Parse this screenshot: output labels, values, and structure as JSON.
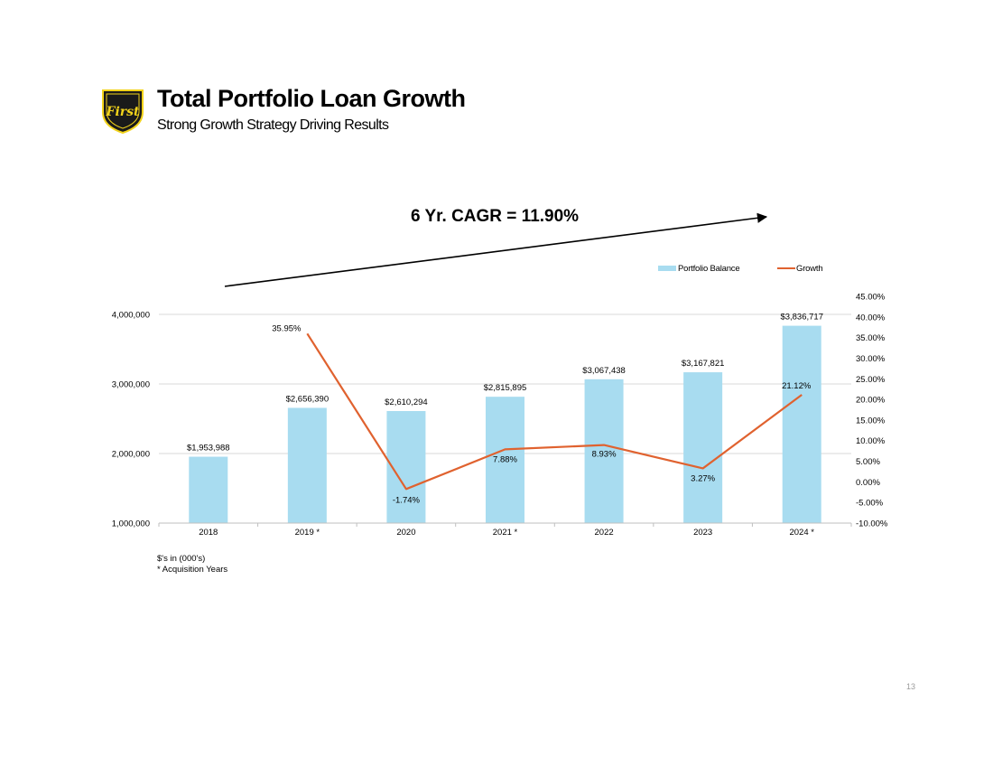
{
  "header": {
    "title": "Total Portfolio Loan Growth",
    "subtitle": "Strong Growth Strategy Driving Results",
    "logo_text": "First"
  },
  "annotation": {
    "cagr_label": "6 Yr. CAGR = 11.90%"
  },
  "footnotes": {
    "units": "$'s in (000's)",
    "acquisition": "* Acquisition Years"
  },
  "page_number": "13",
  "colors": {
    "bar": "#a8dcf0",
    "line": "#e0622f",
    "gridline": "#d9d9d9",
    "logo_bg": "#1a1a1a",
    "logo_accent": "#f2d31b"
  },
  "chart_data": {
    "type": "bar",
    "categories": [
      "2018",
      "2019 *",
      "2020",
      "2021 *",
      "2022",
      "2023",
      "2024 *"
    ],
    "series": [
      {
        "name": "Portfolio Balance",
        "type": "bar",
        "axis": "left",
        "values": [
          1953988,
          2656390,
          2610294,
          2815895,
          3067438,
          3167821,
          3836717
        ],
        "labels": [
          "$1,953,988",
          "$2,656,390",
          "$2,610,294",
          "$2,815,895",
          "$3,067,438",
          "$3,167,821",
          "$3,836,717"
        ]
      },
      {
        "name": "Growth",
        "type": "line",
        "axis": "right",
        "values": [
          null,
          35.95,
          -1.74,
          7.88,
          8.93,
          3.27,
          21.12
        ],
        "labels": [
          "",
          "35.95%",
          "-1.74%",
          "7.88%",
          "8.93%",
          "3.27%",
          "21.12%"
        ]
      }
    ],
    "y_left": {
      "ylim": [
        1000000,
        4000000
      ],
      "ticks": [
        1000000,
        2000000,
        3000000,
        4000000
      ],
      "tick_labels": [
        "1,000,000",
        "2,000,000",
        "3,000,000",
        "4,000,000"
      ]
    },
    "y_right": {
      "ylim": [
        -10,
        45
      ],
      "ticks": [
        -10,
        -5,
        0,
        5,
        10,
        15,
        20,
        25,
        30,
        35,
        40,
        45
      ],
      "tick_labels": [
        "-10.00%",
        "-5.00%",
        "0.00%",
        "5.00%",
        "10.00%",
        "15.00%",
        "20.00%",
        "25.00%",
        "30.00%",
        "35.00%",
        "40.00%",
        "45.00%"
      ]
    },
    "grid": true,
    "legend_position": "top-right"
  }
}
